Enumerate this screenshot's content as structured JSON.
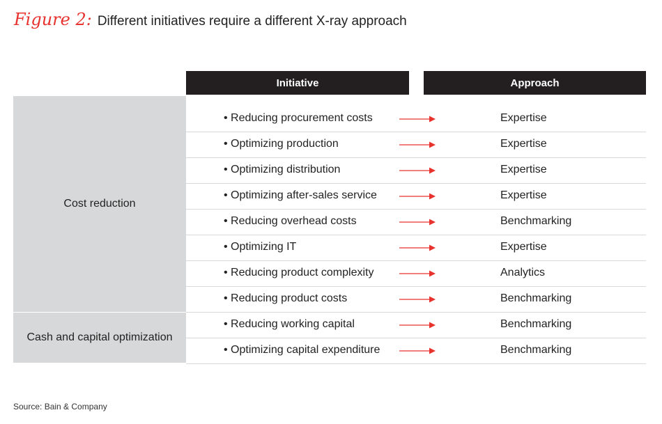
{
  "figure": {
    "label": "Figure 2:",
    "title": "Different initiatives require a different X-ray approach"
  },
  "headers": {
    "initiative": "Initiative",
    "approach": "Approach"
  },
  "groups": [
    {
      "label": "Cost reduction"
    },
    {
      "label": "Cash and capital optimization"
    }
  ],
  "rows": [
    {
      "initiative": "• Reducing procurement costs",
      "approach": "Expertise",
      "group": "Cost reduction"
    },
    {
      "initiative": "• Optimizing production",
      "approach": "Expertise",
      "group": "Cost reduction"
    },
    {
      "initiative": "• Optimizing distribution",
      "approach": "Expertise",
      "group": "Cost reduction"
    },
    {
      "initiative": "• Optimizing after-sales service",
      "approach": "Expertise",
      "group": "Cost reduction"
    },
    {
      "initiative": "• Reducing overhead costs",
      "approach": "Benchmarking",
      "group": "Cost reduction"
    },
    {
      "initiative": "• Optimizing IT",
      "approach": "Expertise",
      "group": "Cost reduction"
    },
    {
      "initiative": "• Reducing product complexity",
      "approach": "Analytics",
      "group": "Cost reduction"
    },
    {
      "initiative": "• Reducing product costs",
      "approach": "Benchmarking",
      "group": "Cost reduction"
    },
    {
      "initiative": "• Reducing working capital",
      "approach": "Benchmarking",
      "group": "Cash and capital optimization"
    },
    {
      "initiative": "• Optimizing capital expenditure",
      "approach": "Benchmarking",
      "group": "Cash and capital optimization"
    }
  ],
  "colors": {
    "accent": "#e8322e",
    "header_bg": "#231f20",
    "group_bg": "#d7d8d9"
  },
  "source": "Source: Bain & Company"
}
